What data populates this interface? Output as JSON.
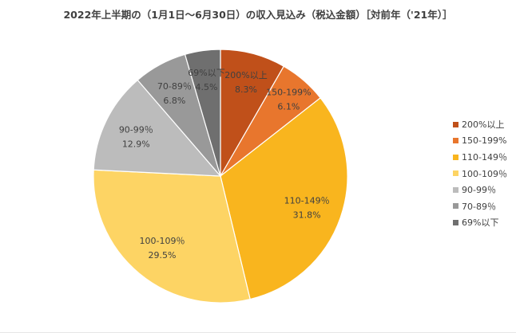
{
  "chart_data": {
    "type": "pie",
    "title": "2022年上半期の（1月1日～6月30日）の収入見込み（税込金額）［対前年（'21年）］",
    "categories": [
      "200%以上",
      "150-199%",
      "110-149％",
      "100-109％",
      "90-99％",
      "70-89％",
      "69%以下"
    ],
    "values": [
      8.3,
      6.1,
      31.8,
      29.5,
      12.9,
      6.8,
      4.5
    ],
    "value_labels": [
      "8.3%",
      "6.1%",
      "31.8%",
      "29.5%",
      "12.9%",
      "6.8%",
      "4.5%"
    ],
    "colors": [
      "#c0501a",
      "#e8762d",
      "#f9b51e",
      "#fdd464",
      "#bcbcbc",
      "#999999",
      "#6f6f6f"
    ],
    "start_angle": "12 o'clock",
    "direction": "clockwise",
    "legend_position": "right"
  }
}
